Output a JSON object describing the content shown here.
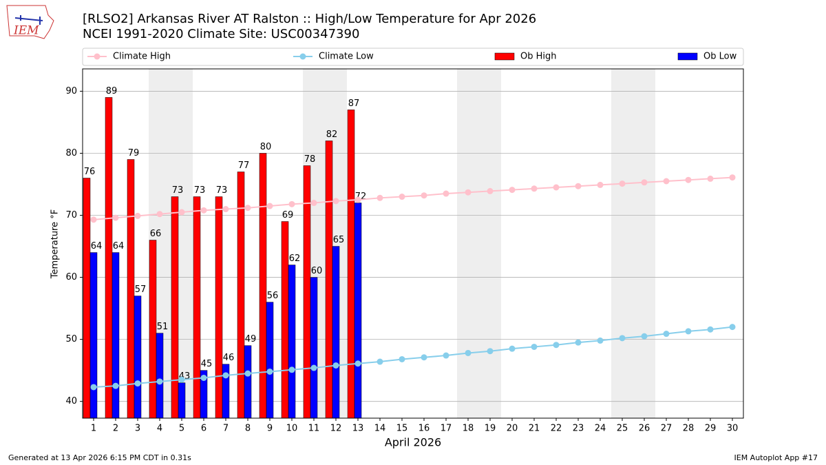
{
  "logo_text": "IEM",
  "chart_data": {
    "type": "bar_line",
    "title": "[RLSO2] Arkansas River  AT Ralston :: High/Low Temperature for Apr 2026",
    "subtitle": "NCEI 1991-2020 Climate Site: USC00347390",
    "xlabel": "April 2026",
    "ylabel": "Temperature °F",
    "x": [
      1,
      2,
      3,
      4,
      5,
      6,
      7,
      8,
      9,
      10,
      11,
      12,
      13,
      14,
      15,
      16,
      17,
      18,
      19,
      20,
      21,
      22,
      23,
      24,
      25,
      26,
      27,
      28,
      29,
      30
    ],
    "xlim": [
      0.5,
      30.5
    ],
    "xticks": [
      1,
      2,
      3,
      4,
      5,
      6,
      7,
      8,
      9,
      10,
      11,
      12,
      13,
      14,
      15,
      16,
      17,
      18,
      19,
      20,
      21,
      22,
      23,
      24,
      25,
      26,
      27,
      28,
      29,
      30
    ],
    "ylim": [
      37.3,
      93.6
    ],
    "yticks": [
      40,
      50,
      60,
      70,
      80,
      90
    ],
    "grid": true,
    "shaded_days": [
      4,
      5,
      11,
      12,
      18,
      19,
      25,
      26
    ],
    "series": [
      {
        "name": "Climate High",
        "color": "#ffc0cb",
        "kind": "line",
        "values": [
          69.3,
          69.6,
          69.9,
          70.2,
          70.5,
          70.8,
          71.0,
          71.2,
          71.5,
          71.8,
          72.0,
          72.3,
          72.5,
          72.8,
          73.0,
          73.2,
          73.5,
          73.7,
          73.9,
          74.1,
          74.3,
          74.5,
          74.7,
          74.9,
          75.1,
          75.3,
          75.5,
          75.7,
          75.9,
          76.1
        ]
      },
      {
        "name": "Climate Low",
        "color": "#87ceeb",
        "kind": "line",
        "values": [
          42.3,
          42.5,
          42.9,
          43.2,
          43.5,
          43.8,
          44.2,
          44.5,
          44.8,
          45.1,
          45.4,
          45.8,
          46.1,
          46.4,
          46.8,
          47.1,
          47.4,
          47.8,
          48.1,
          48.5,
          48.8,
          49.1,
          49.5,
          49.8,
          50.2,
          50.5,
          50.9,
          51.3,
          51.6,
          52.0
        ]
      },
      {
        "name": "Ob High",
        "color": "#ff0000",
        "kind": "bar",
        "values": [
          76,
          89,
          79,
          66,
          73,
          73,
          73,
          77,
          80,
          69,
          78,
          82,
          87,
          null,
          null,
          null,
          null,
          null,
          null,
          null,
          null,
          null,
          null,
          null,
          null,
          null,
          null,
          null,
          null,
          null
        ]
      },
      {
        "name": "Ob Low",
        "color": "#0000ff",
        "kind": "bar",
        "values": [
          64,
          64,
          57,
          51,
          43,
          45,
          46,
          49,
          56,
          62,
          60,
          65,
          72,
          null,
          null,
          null,
          null,
          null,
          null,
          null,
          null,
          null,
          null,
          null,
          null,
          null,
          null,
          null,
          null,
          null
        ]
      }
    ],
    "footer_left": "Generated at 13 Apr 2026 6:15 PM CDT in 0.31s",
    "footer_right": "IEM Autoplot App #17"
  }
}
